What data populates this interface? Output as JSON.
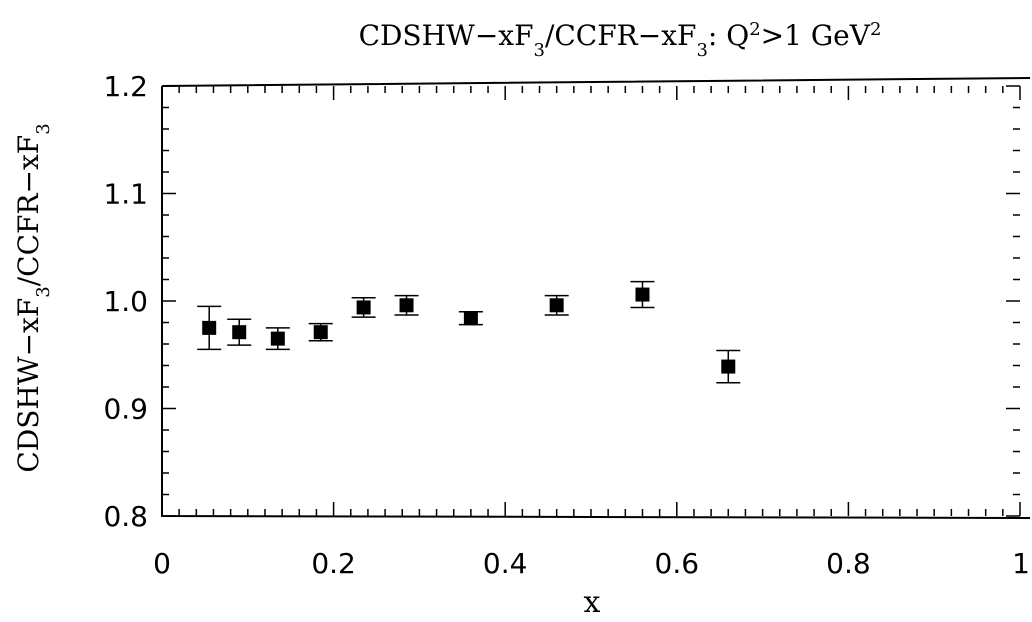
{
  "chart_data": {
    "type": "scatter",
    "title": {
      "prefix": "CDSHW−xF",
      "sub1": "3",
      "mid": "/CCFR−xF",
      "sub2": "3",
      "mid2": ": Q",
      "sup1": "2",
      "mid3": ">1 GeV",
      "sup2": "2"
    },
    "xlabel": "x",
    "ylabel": {
      "prefix": "CDSHW−xF",
      "sub1": "3",
      "mid": "/CCFR−xF",
      "sub2": "3"
    },
    "xlim": [
      0,
      1
    ],
    "ylim": [
      0.8,
      1.2
    ],
    "x_ticks": [
      {
        "value": 0,
        "label": "0"
      },
      {
        "value": 0.2,
        "label": "0.2"
      },
      {
        "value": 0.4,
        "label": "0.4"
      },
      {
        "value": 0.6,
        "label": "0.6"
      },
      {
        "value": 0.8,
        "label": "0.8"
      },
      {
        "value": 1,
        "label": "1"
      }
    ],
    "y_ticks": [
      {
        "value": 0.8,
        "label": "0.8"
      },
      {
        "value": 0.9,
        "label": "0.9"
      },
      {
        "value": 1.0,
        "label": "1.0"
      },
      {
        "value": 1.1,
        "label": "1.1"
      },
      {
        "value": 1.2,
        "label": "1.2"
      }
    ],
    "grid": false,
    "marker": "filled-square",
    "points": [
      {
        "x": 0.055,
        "y": 0.975,
        "err": 0.02
      },
      {
        "x": 0.09,
        "y": 0.971,
        "err": 0.012
      },
      {
        "x": 0.135,
        "y": 0.965,
        "err": 0.01
      },
      {
        "x": 0.185,
        "y": 0.971,
        "err": 0.008
      },
      {
        "x": 0.235,
        "y": 0.994,
        "err": 0.009
      },
      {
        "x": 0.285,
        "y": 0.996,
        "err": 0.009
      },
      {
        "x": 0.36,
        "y": 0.984,
        "err": 0.006
      },
      {
        "x": 0.46,
        "y": 0.996,
        "err": 0.009
      },
      {
        "x": 0.56,
        "y": 1.006,
        "err": 0.012
      },
      {
        "x": 0.66,
        "y": 0.939,
        "err": 0.015
      }
    ]
  }
}
